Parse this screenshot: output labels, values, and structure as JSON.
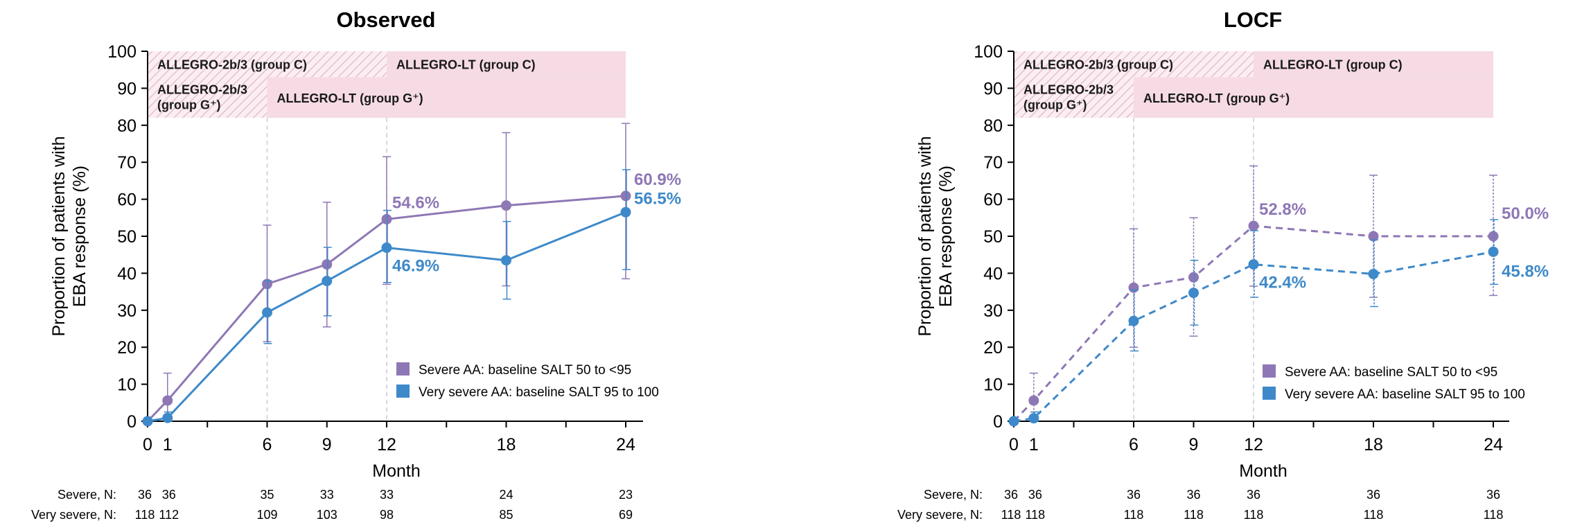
{
  "colors": {
    "severe": "#8e77b5",
    "very_severe": "#3e89c9",
    "band": "#f6dbe4",
    "band_hatch": "#e7c2cf",
    "axis": "#000000"
  },
  "nrow_labels": [
    "Severe, N:",
    "Very severe, N:"
  ],
  "chart_data": [
    {
      "type": "line",
      "title": "Observed",
      "xlabel": "Month",
      "ylabel_lines": [
        "Proportion of patients with",
        "EBA response (%)"
      ],
      "xlim": [
        0,
        24
      ],
      "ylim": [
        0,
        100
      ],
      "xticks": [
        0,
        1,
        6,
        9,
        12,
        18,
        24
      ],
      "yticks": [
        0,
        10,
        20,
        30,
        40,
        50,
        60,
        70,
        80,
        90,
        100
      ],
      "dashed": false,
      "ref_lines_x": [
        6,
        12
      ],
      "bands": [
        {
          "label": "ALLEGRO-2b/3 (group C)",
          "x0": 0,
          "x1": 12,
          "y0": 93,
          "y1": 100,
          "hatched": true
        },
        {
          "label": "ALLEGRO-LT (group C)",
          "x0": 12,
          "x1": 24,
          "y0": 93,
          "y1": 100,
          "hatched": false
        },
        {
          "label": "ALLEGRO-2b/3",
          "label2": "(group G⁺)",
          "x0": 0,
          "x1": 6,
          "y0": 82,
          "y1": 93,
          "hatched": true
        },
        {
          "label": "ALLEGRO-LT (group G⁺)",
          "x0": 6,
          "x1": 24,
          "y0": 82,
          "y1": 93,
          "hatched": false
        }
      ],
      "series": [
        {
          "name": "Severe AA: baseline SALT 50 to <95",
          "key": "severe",
          "x": [
            0,
            1,
            6,
            9,
            12,
            18,
            24
          ],
          "y": [
            0,
            5.6,
            37.1,
            42.4,
            54.6,
            58.3,
            60.9
          ],
          "err_low": [
            0,
            0.7,
            21.5,
            25.5,
            37,
            36.6,
            38.5
          ],
          "err_high": [
            0,
            13,
            53,
            59.2,
            71.5,
            78,
            80.5
          ],
          "labels": {
            "12": "54.6%",
            "24": "60.9%"
          }
        },
        {
          "name": "Very severe AA: baseline SALT 95 to 100",
          "key": "very_severe",
          "x": [
            0,
            1,
            6,
            9,
            12,
            18,
            24
          ],
          "y": [
            0,
            0.9,
            29.4,
            37.9,
            46.9,
            43.5,
            56.5
          ],
          "err_low": [
            0,
            0,
            21,
            28.5,
            37.5,
            33,
            41
          ],
          "err_high": [
            0,
            2.5,
            38,
            47,
            57,
            54,
            68
          ],
          "labels": {
            "12": "46.9%",
            "24": "56.5%"
          }
        }
      ],
      "legend": [
        "Severe AA: baseline SALT 50 to <95",
        "Very severe AA: baseline SALT 95 to 100"
      ],
      "legend_placement": "lower-right",
      "n_rows": [
        [
          "36",
          "36",
          "35",
          "33",
          "33",
          "24",
          "23"
        ],
        [
          "118",
          "112",
          "109",
          "103",
          "98",
          "85",
          "69"
        ]
      ]
    },
    {
      "type": "line",
      "title": "LOCF",
      "xlabel": "Month",
      "ylabel_lines": [
        "Proportion of patients with",
        "EBA response (%)"
      ],
      "xlim": [
        0,
        24
      ],
      "ylim": [
        0,
        100
      ],
      "xticks": [
        0,
        1,
        6,
        9,
        12,
        18,
        24
      ],
      "yticks": [
        0,
        10,
        20,
        30,
        40,
        50,
        60,
        70,
        80,
        90,
        100
      ],
      "dashed": true,
      "ref_lines_x": [
        6,
        12
      ],
      "bands": [
        {
          "label": "ALLEGRO-2b/3 (group C)",
          "x0": 0,
          "x1": 12,
          "y0": 93,
          "y1": 100,
          "hatched": true
        },
        {
          "label": "ALLEGRO-LT (group C)",
          "x0": 12,
          "x1": 24,
          "y0": 93,
          "y1": 100,
          "hatched": false
        },
        {
          "label": "ALLEGRO-2b/3",
          "label2": "(group G⁺)",
          "x0": 0,
          "x1": 6,
          "y0": 82,
          "y1": 93,
          "hatched": true
        },
        {
          "label": "ALLEGRO-LT (group G⁺)",
          "x0": 6,
          "x1": 24,
          "y0": 82,
          "y1": 93,
          "hatched": false
        }
      ],
      "series": [
        {
          "name": "Severe AA: baseline SALT 50 to <95",
          "key": "severe",
          "x": [
            0,
            1,
            6,
            9,
            12,
            18,
            24
          ],
          "y": [
            0,
            5.6,
            36.1,
            38.9,
            52.8,
            50.0,
            50.0
          ],
          "err_low": [
            0,
            0.7,
            20,
            23,
            36.5,
            33.5,
            34
          ],
          "err_high": [
            0,
            13,
            52,
            55,
            69,
            66.5,
            66.5
          ],
          "labels": {
            "12": "52.8%",
            "24": "50.0%"
          }
        },
        {
          "name": "Very severe AA: baseline SALT 95 to 100",
          "key": "very_severe",
          "x": [
            0,
            1,
            6,
            9,
            12,
            18,
            24
          ],
          "y": [
            0,
            0.8,
            27.1,
            34.7,
            42.4,
            39.8,
            45.8
          ],
          "err_low": [
            0,
            0,
            19,
            26,
            33.5,
            31,
            37
          ],
          "err_high": [
            0,
            2.5,
            35.5,
            43.5,
            51.5,
            49,
            54.5
          ],
          "labels": {
            "12": "42.4%",
            "24": "45.8%"
          }
        }
      ],
      "legend": [
        "Severe AA: baseline SALT 50 to <95",
        "Very severe AA: baseline SALT 95 to 100"
      ],
      "legend_placement": "lower-right",
      "n_rows": [
        [
          "36",
          "36",
          "36",
          "36",
          "36",
          "36",
          "36"
        ],
        [
          "118",
          "118",
          "118",
          "118",
          "118",
          "118",
          "118"
        ]
      ]
    }
  ]
}
